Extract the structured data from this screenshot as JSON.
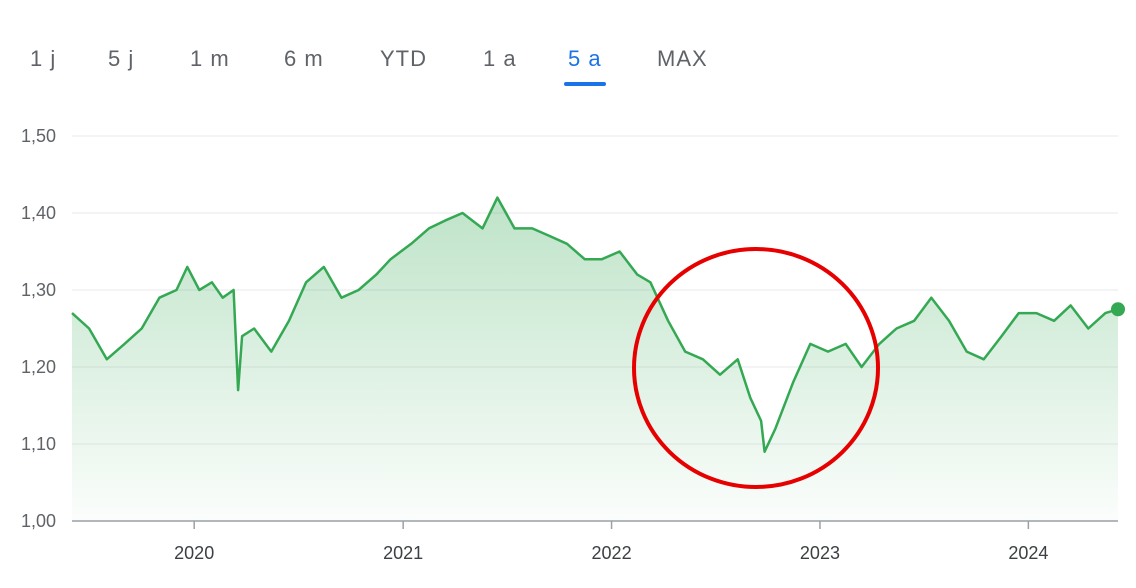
{
  "range_tabs": [
    {
      "label": "1 j",
      "active": false
    },
    {
      "label": "5 j",
      "active": false
    },
    {
      "label": "1 m",
      "active": false
    },
    {
      "label": "6 m",
      "active": false
    },
    {
      "label": "YTD",
      "active": false
    },
    {
      "label": "1 a",
      "active": false
    },
    {
      "label": "5 a",
      "active": true
    },
    {
      "label": "MAX",
      "active": false
    }
  ],
  "colors": {
    "line": "#34a853",
    "accent": "#1a73e8",
    "annotation": "#e60000"
  },
  "chart_data": {
    "type": "area",
    "title": "",
    "xlabel": "",
    "ylabel": "",
    "ylim": [
      1.0,
      1.5
    ],
    "y_ticks": [
      "1,00",
      "1,10",
      "1,20",
      "1,30",
      "1,40",
      "1,50"
    ],
    "y_tick_values": [
      1.0,
      1.1,
      1.2,
      1.3,
      1.4,
      1.5
    ],
    "x_ticks": [
      "2020",
      "2021",
      "2022",
      "2023",
      "2024"
    ],
    "x_tick_values": [
      "2020-01-01",
      "2021-01-01",
      "2022-01-01",
      "2023-01-01",
      "2024-01-01"
    ],
    "xlim": [
      "2019-06-01",
      "2024-06-06"
    ],
    "grid": "horizontal",
    "series": [
      {
        "x": [
          "2019-06-01",
          "2019-07-01",
          "2019-08-01",
          "2019-09-01",
          "2019-10-01",
          "2019-11-01",
          "2019-12-01",
          "2019-12-20",
          "2020-01-10",
          "2020-02-01",
          "2020-02-20",
          "2020-03-10",
          "2020-03-18",
          "2020-03-25",
          "2020-04-15",
          "2020-05-15",
          "2020-06-15",
          "2020-07-15",
          "2020-08-15",
          "2020-09-15",
          "2020-10-15",
          "2020-11-15",
          "2020-12-10",
          "2021-01-15",
          "2021-02-15",
          "2021-03-15",
          "2021-04-15",
          "2021-05-20",
          "2021-06-15",
          "2021-07-15",
          "2021-08-15",
          "2021-09-15",
          "2021-10-15",
          "2021-11-15",
          "2021-12-15",
          "2022-01-15",
          "2022-02-15",
          "2022-03-10",
          "2022-04-10",
          "2022-05-10",
          "2022-06-10",
          "2022-07-10",
          "2022-08-10",
          "2022-09-01",
          "2022-09-20",
          "2022-09-26",
          "2022-10-15",
          "2022-11-15",
          "2022-12-15",
          "2023-01-15",
          "2023-02-15",
          "2023-03-15",
          "2023-04-15",
          "2023-05-15",
          "2023-06-15",
          "2023-07-15",
          "2023-08-15",
          "2023-09-15",
          "2023-10-15",
          "2023-11-15",
          "2023-12-15",
          "2024-01-15",
          "2024-02-15",
          "2024-03-15",
          "2024-04-15",
          "2024-05-15",
          "2024-06-06"
        ],
        "y": [
          1.27,
          1.25,
          1.21,
          1.23,
          1.25,
          1.29,
          1.3,
          1.33,
          1.3,
          1.31,
          1.29,
          1.3,
          1.17,
          1.24,
          1.25,
          1.22,
          1.26,
          1.31,
          1.33,
          1.29,
          1.3,
          1.32,
          1.34,
          1.36,
          1.38,
          1.39,
          1.4,
          1.38,
          1.42,
          1.38,
          1.38,
          1.37,
          1.36,
          1.34,
          1.34,
          1.35,
          1.32,
          1.31,
          1.26,
          1.22,
          1.21,
          1.19,
          1.21,
          1.16,
          1.13,
          1.09,
          1.12,
          1.18,
          1.23,
          1.22,
          1.23,
          1.2,
          1.23,
          1.25,
          1.26,
          1.29,
          1.26,
          1.22,
          1.21,
          1.24,
          1.27,
          1.27,
          1.26,
          1.28,
          1.25,
          1.27,
          1.275
        ]
      }
    ]
  }
}
